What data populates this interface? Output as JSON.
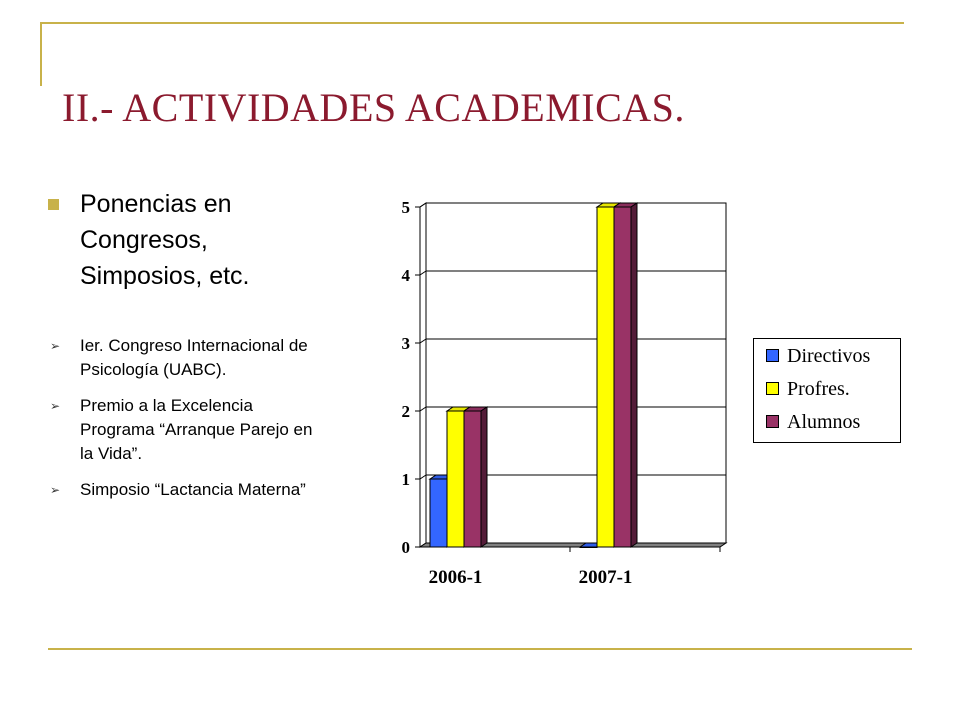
{
  "slide": {
    "title": "II.- ACTIVIDADES ACADEMICAS.",
    "main_bullet": "Ponencias en Congresos, Simposios, etc.",
    "sub_bullets": [
      "Ier. Congreso Internacional de Psicología (UABC).",
      "Premio a la Excelencia Programa “Arranque Parejo en la Vida”.",
      "Simposio “Lactancia Materna”"
    ],
    "accent_color": "#c8b24a",
    "title_color": "#8b1a2e"
  },
  "chart_data": {
    "type": "bar",
    "categories": [
      "2006-1",
      "2007-1"
    ],
    "series": [
      {
        "name": "Directivos",
        "values": [
          1,
          0
        ],
        "color": "#3366ff"
      },
      {
        "name": "Profres.",
        "values": [
          2,
          5
        ],
        "color": "#ffff00"
      },
      {
        "name": "Alumnos",
        "values": [
          2,
          5
        ],
        "color": "#993366"
      }
    ],
    "ylim": [
      0,
      5
    ],
    "yticks": [
      "0",
      "1",
      "2",
      "3",
      "4",
      "5"
    ],
    "grid": true,
    "legend_position": "right",
    "style": "3d"
  }
}
